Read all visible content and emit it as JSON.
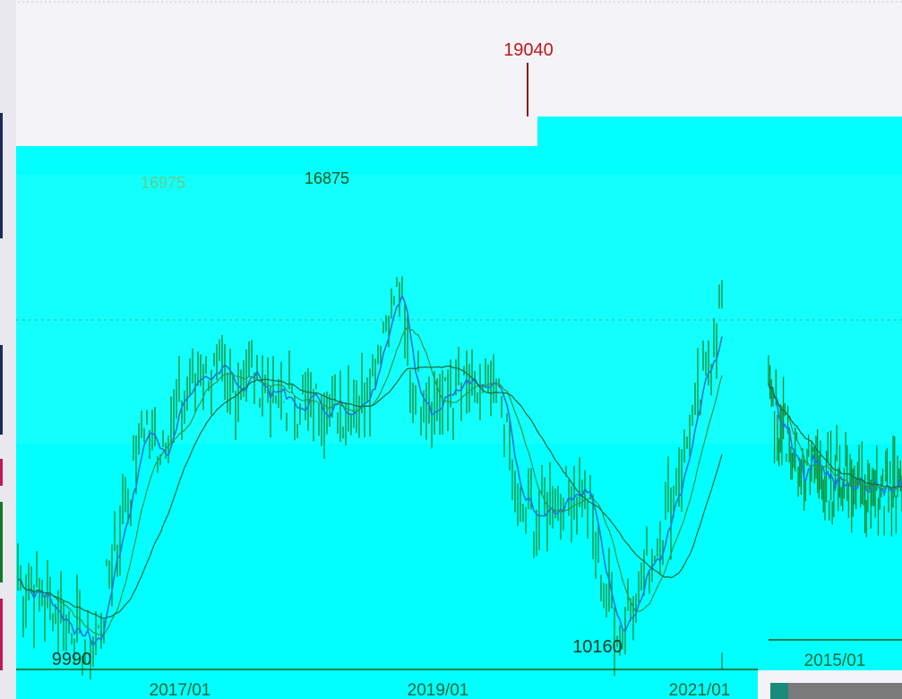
{
  "colors": {
    "background": "#f4f3f8",
    "panel": "#00ffff",
    "candle": "#0f8a2a",
    "ma_fast": "#1f77d6",
    "ma_mid": "#2e9a4a",
    "ma_slow": "#1a6b3a",
    "high_label": "#c01818",
    "label": "#0f5a1a"
  },
  "chart_data": {
    "type": "line",
    "title": "",
    "xlabel": "",
    "ylabel": "",
    "x_ticks": [
      "2017/01",
      "2019/01",
      "2021/01",
      "2015/01"
    ],
    "annotations": [
      {
        "text": "19040",
        "kind": "high"
      },
      {
        "text": "9990",
        "kind": "low"
      },
      {
        "text": "10160",
        "kind": "low"
      },
      {
        "text": "16975",
        "kind": "peak"
      },
      {
        "text": "16875",
        "kind": "peak"
      }
    ],
    "main_window": {
      "start": "2016/03",
      "end": "2021/04",
      "ylim": [
        9600,
        19400
      ],
      "series": [
        {
          "name": "",
          "values": [
            [
              "2016/03",
              11300
            ],
            [
              "2016/05",
              11000
            ],
            [
              "2016/07",
              10600
            ],
            [
              "2016/09",
              10100
            ],
            [
              "2016/10",
              10250
            ],
            [
              "2016/11",
              11600
            ],
            [
              "2016/12",
              12400
            ],
            [
              "2017/02",
              14200
            ],
            [
              "2017/03",
              13600
            ],
            [
              "2017/05",
              14500
            ],
            [
              "2017/07",
              15200
            ],
            [
              "2017/09",
              14800
            ],
            [
              "2017/11",
              15100
            ],
            [
              "2018/01",
              14700
            ],
            [
              "2018/03",
              14500
            ],
            [
              "2018/05",
              14600
            ],
            [
              "2018/07",
              14500
            ],
            [
              "2018/09",
              14700
            ],
            [
              "2018/11",
              16200
            ],
            [
              "2018/12",
              16600
            ],
            [
              "2019/01",
              15000
            ],
            [
              "2019/03",
              14500
            ],
            [
              "2019/05",
              14800
            ],
            [
              "2019/07",
              14700
            ],
            [
              "2019/09",
              14600
            ],
            [
              "2019/10",
              12800
            ],
            [
              "2019/12",
              12400
            ],
            [
              "2020/02",
              12800
            ],
            [
              "2020/04",
              13100
            ],
            [
              "2020/06",
              11000
            ],
            [
              "2020/07",
              10400
            ],
            [
              "2020/09",
              11300
            ],
            [
              "2020/11",
              12300
            ],
            [
              "2021/01",
              13800
            ],
            [
              "2021/02",
              14600
            ],
            [
              "2021/04",
              16300
            ]
          ]
        }
      ]
    },
    "inset_window": {
      "start": "2014/06",
      "end": "2016/03",
      "ylim": [
        9600,
        19400
      ],
      "series": [
        {
          "name": "",
          "values": [
            [
              "2014/06",
              14700
            ],
            [
              "2014/08",
              14200
            ],
            [
              "2014/10",
              13600
            ],
            [
              "2014/12",
              13300
            ],
            [
              "2015/02",
              13400
            ],
            [
              "2015/04",
              13100
            ],
            [
              "2015/06",
              13200
            ],
            [
              "2015/08",
              13000
            ],
            [
              "2015/10",
              12900
            ],
            [
              "2015/12",
              12950
            ],
            [
              "2016/02",
              12900
            ],
            [
              "2016/03",
              12850
            ]
          ]
        }
      ]
    }
  }
}
